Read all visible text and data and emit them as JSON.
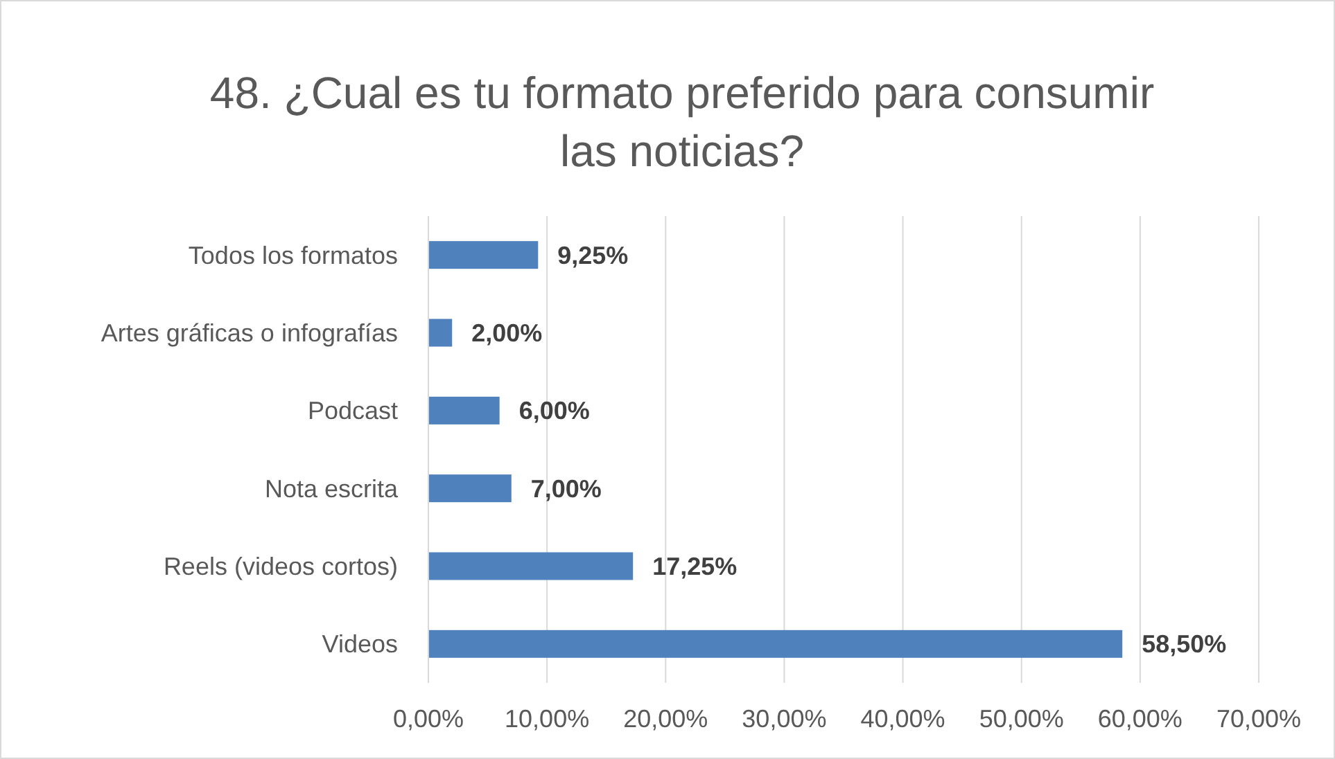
{
  "chart_data": {
    "type": "bar",
    "orientation": "horizontal",
    "title": "48. ¿Cual es tu formato preferido para consumir las noticias?",
    "categories": [
      "Todos los formatos",
      "Artes gráficas o infografías",
      "Podcast",
      "Nota escrita",
      "Reels (videos cortos)",
      "Videos"
    ],
    "values": [
      9.25,
      2,
      6,
      7,
      17.25,
      58.5
    ],
    "value_labels": [
      "9,25%",
      "2,00%",
      "6,00%",
      "7,00%",
      "17,25%",
      "58,50%"
    ],
    "color": "#4f81bd",
    "xlim": [
      0,
      70
    ],
    "xticks": [
      {
        "value": 0,
        "label": "0,00%"
      },
      {
        "value": 10,
        "label": "10,00%"
      },
      {
        "value": 20,
        "label": "20,00%"
      },
      {
        "value": 30,
        "label": "30,00%"
      },
      {
        "value": 40,
        "label": "40,00%"
      },
      {
        "value": 50,
        "label": "50,00%"
      },
      {
        "value": 60,
        "label": "60,00%"
      },
      {
        "value": 70,
        "label": "70,00%"
      }
    ],
    "grid": "x"
  }
}
